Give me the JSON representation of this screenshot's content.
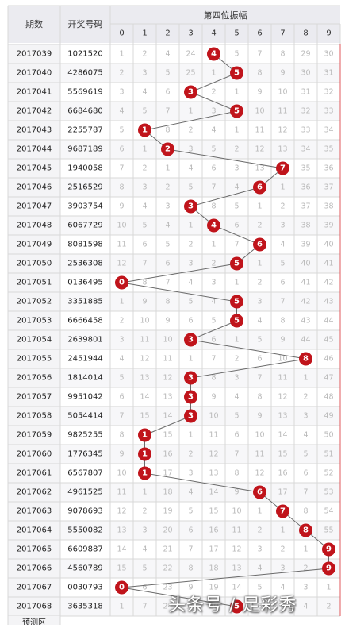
{
  "header": {
    "period_label": "期数",
    "number_label": "开奖号码",
    "amplitude_label": "第四位振幅"
  },
  "watermark": "头条号 / 足彩秀",
  "footer_label": "预测区",
  "colors": {
    "ball": "#c0141b",
    "grid": "#d8d8d8",
    "header_bg": "#ebebf0",
    "period_bg": "#f4f4f6",
    "row_alt": "#f7f7f9",
    "line": "#6a6a6a",
    "miss_text": "#b9b9b9"
  },
  "chart_data": {
    "type": "table",
    "title": "第四位振幅",
    "columns": [
      "0",
      "1",
      "2",
      "3",
      "4",
      "5",
      "6",
      "7",
      "8",
      "9"
    ],
    "rows": [
      {
        "period": "2017039",
        "number": "1021520",
        "value": 4,
        "cells": [
          "1",
          "2",
          "4",
          "24",
          "",
          "5",
          "7",
          "8",
          "29",
          "30"
        ]
      },
      {
        "period": "2017040",
        "number": "4286075",
        "value": 5,
        "cells": [
          "2",
          "3",
          "5",
          "25",
          "1",
          "",
          "8",
          "9",
          "30",
          "31"
        ]
      },
      {
        "period": "2017041",
        "number": "5569619",
        "value": 3,
        "cells": [
          "3",
          "4",
          "6",
          "",
          "2",
          "1",
          "9",
          "10",
          "31",
          "32"
        ]
      },
      {
        "period": "2017042",
        "number": "6684680",
        "value": 5,
        "cells": [
          "4",
          "5",
          "7",
          "1",
          "3",
          "",
          "10",
          "11",
          "32",
          "33"
        ]
      },
      {
        "period": "2017043",
        "number": "2255787",
        "value": 1,
        "cells": [
          "5",
          "",
          "8",
          "2",
          "4",
          "1",
          "11",
          "12",
          "33",
          "34"
        ]
      },
      {
        "period": "2017044",
        "number": "9687189",
        "value": 2,
        "cells": [
          "6",
          "1",
          "",
          "3",
          "5",
          "2",
          "12",
          "13",
          "34",
          "35"
        ]
      },
      {
        "period": "2017045",
        "number": "1940058",
        "value": 7,
        "cells": [
          "7",
          "2",
          "1",
          "4",
          "6",
          "3",
          "13",
          "",
          "35",
          "36"
        ]
      },
      {
        "period": "2017046",
        "number": "2516529",
        "value": 6,
        "cells": [
          "8",
          "3",
          "2",
          "5",
          "7",
          "4",
          "",
          "1",
          "36",
          "37"
        ]
      },
      {
        "period": "2017047",
        "number": "3903754",
        "value": 3,
        "cells": [
          "9",
          "4",
          "3",
          "",
          "8",
          "5",
          "1",
          "2",
          "37",
          "38"
        ]
      },
      {
        "period": "2017048",
        "number": "6067729",
        "value": 4,
        "cells": [
          "10",
          "5",
          "4",
          "1",
          "",
          "6",
          "2",
          "3",
          "38",
          "39"
        ]
      },
      {
        "period": "2017049",
        "number": "8081598",
        "value": 6,
        "cells": [
          "11",
          "6",
          "5",
          "2",
          "1",
          "7",
          "",
          "4",
          "39",
          "40"
        ]
      },
      {
        "period": "2017050",
        "number": "2536308",
        "value": 5,
        "cells": [
          "12",
          "7",
          "6",
          "3",
          "2",
          "",
          "1",
          "5",
          "40",
          "41"
        ]
      },
      {
        "period": "2017051",
        "number": "0136495",
        "value": 0,
        "cells": [
          "",
          "8",
          "7",
          "4",
          "3",
          "1",
          "2",
          "6",
          "41",
          "42"
        ]
      },
      {
        "period": "2017052",
        "number": "3351885",
        "value": 5,
        "cells": [
          "1",
          "9",
          "8",
          "5",
          "4",
          "",
          "3",
          "7",
          "42",
          "43"
        ]
      },
      {
        "period": "2017053",
        "number": "6666458",
        "value": 5,
        "cells": [
          "2",
          "10",
          "9",
          "6",
          "5",
          "",
          "4",
          "8",
          "43",
          "44"
        ]
      },
      {
        "period": "2017054",
        "number": "2639801",
        "value": 3,
        "cells": [
          "3",
          "11",
          "10",
          "",
          "6",
          "1",
          "5",
          "9",
          "44",
          "45"
        ]
      },
      {
        "period": "2017055",
        "number": "2451944",
        "value": 8,
        "cells": [
          "4",
          "12",
          "11",
          "1",
          "7",
          "2",
          "6",
          "10",
          "",
          "46"
        ]
      },
      {
        "period": "2017056",
        "number": "1814014",
        "value": 3,
        "cells": [
          "5",
          "13",
          "12",
          "",
          "8",
          "3",
          "7",
          "11",
          "1",
          "47"
        ]
      },
      {
        "period": "2017057",
        "number": "9951042",
        "value": 3,
        "cells": [
          "6",
          "14",
          "13",
          "",
          "9",
          "4",
          "8",
          "12",
          "2",
          "48"
        ]
      },
      {
        "period": "2017058",
        "number": "5054414",
        "value": 3,
        "cells": [
          "7",
          "15",
          "14",
          "",
          "10",
          "5",
          "9",
          "13",
          "3",
          "49"
        ]
      },
      {
        "period": "2017059",
        "number": "9825255",
        "value": 1,
        "cells": [
          "8",
          "",
          "15",
          "1",
          "11",
          "6",
          "10",
          "14",
          "4",
          "50"
        ]
      },
      {
        "period": "2017060",
        "number": "1776345",
        "value": 1,
        "cells": [
          "9",
          "",
          "16",
          "2",
          "12",
          "7",
          "11",
          "15",
          "5",
          "51"
        ]
      },
      {
        "period": "2017061",
        "number": "6567807",
        "value": 1,
        "cells": [
          "10",
          "",
          "17",
          "3",
          "13",
          "8",
          "12",
          "16",
          "6",
          "52"
        ]
      },
      {
        "period": "2017062",
        "number": "4961525",
        "value": 6,
        "cells": [
          "11",
          "1",
          "18",
          "4",
          "14",
          "9",
          "",
          "17",
          "7",
          "53"
        ]
      },
      {
        "period": "2017063",
        "number": "9078693",
        "value": 7,
        "cells": [
          "12",
          "2",
          "19",
          "5",
          "15",
          "10",
          "1",
          "",
          "8",
          "54"
        ]
      },
      {
        "period": "2017064",
        "number": "5550082",
        "value": 8,
        "cells": [
          "13",
          "3",
          "20",
          "6",
          "16",
          "11",
          "2",
          "1",
          "",
          "55"
        ]
      },
      {
        "period": "2017065",
        "number": "6609887",
        "value": 9,
        "cells": [
          "14",
          "4",
          "21",
          "7",
          "17",
          "12",
          "3",
          "2",
          "1",
          ""
        ]
      },
      {
        "period": "2017066",
        "number": "4560789",
        "value": 9,
        "cells": [
          "15",
          "5",
          "22",
          "8",
          "18",
          "13",
          "4",
          "3",
          "2",
          ""
        ]
      },
      {
        "period": "2017067",
        "number": "0030793",
        "value": 0,
        "cells": [
          "",
          "6",
          "23",
          "9",
          "19",
          "14",
          "5",
          "4",
          "3",
          "1"
        ]
      },
      {
        "period": "2017068",
        "number": "3635318",
        "value": 5,
        "cells": [
          "1",
          "7",
          "24",
          "10",
          "20",
          "",
          "6",
          "5",
          "4",
          "2"
        ]
      }
    ],
    "connect_line": true,
    "grid": true
  }
}
